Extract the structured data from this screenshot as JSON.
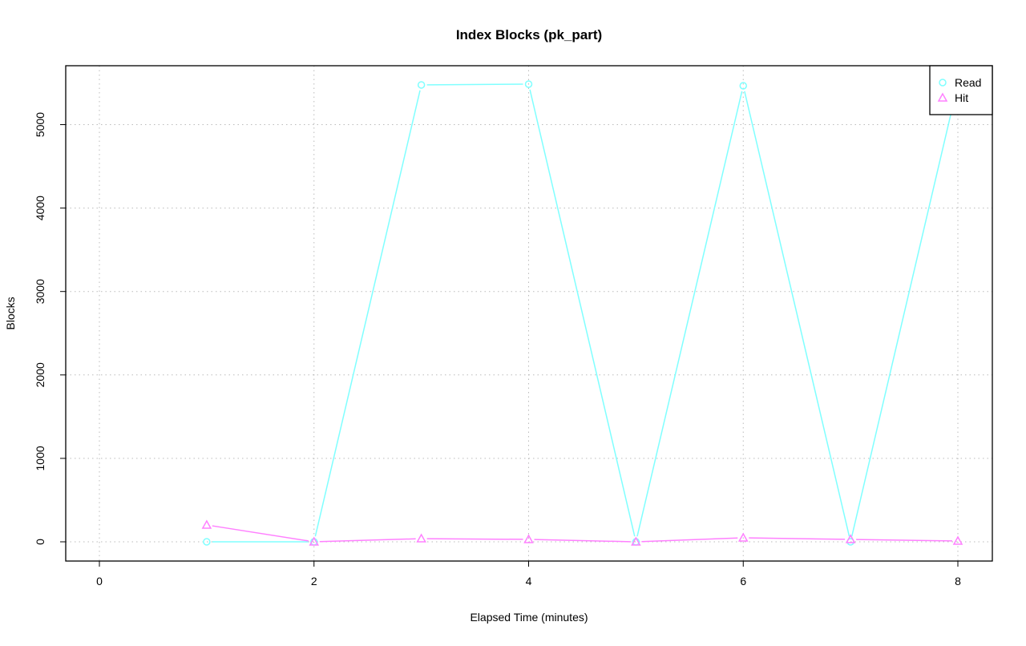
{
  "chart_data": {
    "type": "line",
    "title": "Index Blocks (pk_part)",
    "xlabel": "Elapsed Time (minutes)",
    "ylabel": "Blocks",
    "xlim": [
      -0.3,
      8.3
    ],
    "ylim": [
      -250,
      5700
    ],
    "xticks": [
      0,
      2,
      4,
      6,
      8
    ],
    "yticks": [
      0,
      1000,
      2000,
      3000,
      4000,
      5000
    ],
    "grid": true,
    "legend_position": "top-right",
    "x": [
      1,
      2,
      3,
      4,
      5,
      6,
      7,
      8
    ],
    "series": [
      {
        "name": "Read",
        "color": "#80ffff",
        "marker": "circle",
        "values": [
          0,
          0,
          5476,
          5485,
          0,
          5466,
          0,
          5485
        ]
      },
      {
        "name": "Hit",
        "color": "#ff80ff",
        "marker": "triangle",
        "values": [
          202,
          0,
          38,
          29,
          0,
          48,
          29,
          10
        ]
      }
    ]
  }
}
